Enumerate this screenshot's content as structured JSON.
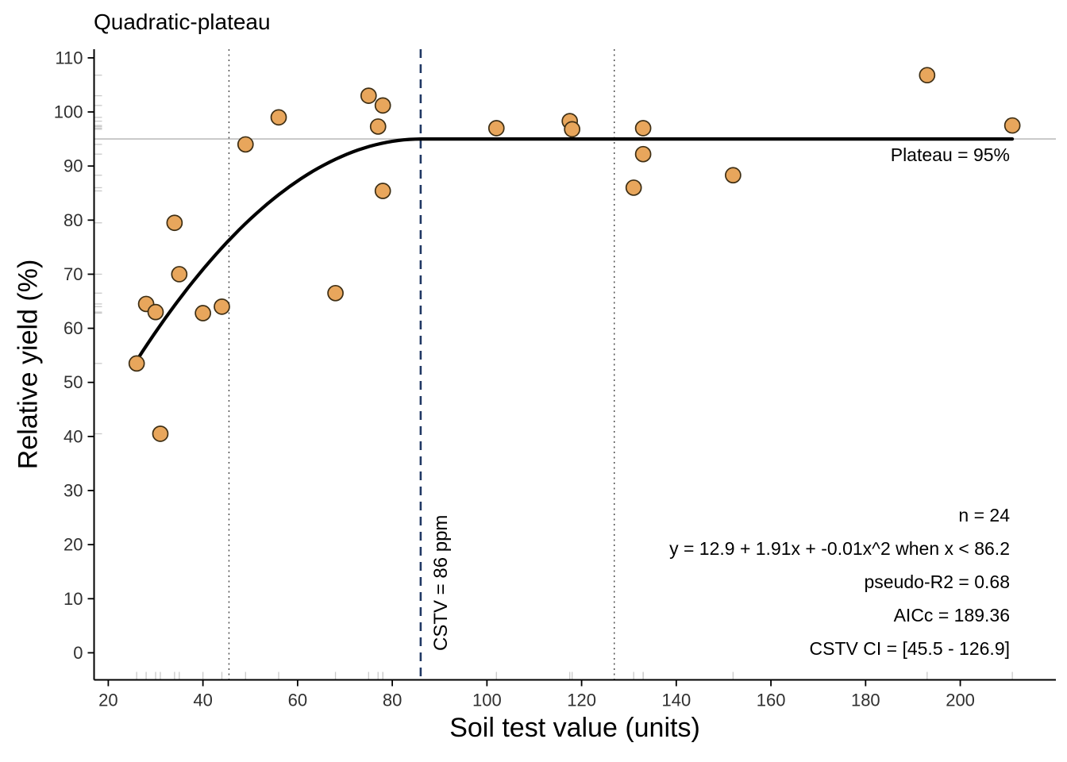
{
  "chart_data": {
    "type": "scatter",
    "title": "Quadratic-plateau",
    "xlabel": "Soil test value (units)",
    "ylabel": "Relative yield (%)",
    "xlim": [
      17,
      220.2
    ],
    "ylim": [
      -5,
      111.6
    ],
    "x_ticks": [
      20,
      40,
      60,
      80,
      100,
      120,
      140,
      160,
      180,
      200
    ],
    "y_ticks": [
      0,
      10,
      20,
      30,
      40,
      50,
      60,
      70,
      80,
      90,
      100,
      110
    ],
    "grid": false,
    "legend": "none",
    "points": [
      {
        "x": 26,
        "y": 53.5
      },
      {
        "x": 28,
        "y": 64.5
      },
      {
        "x": 30,
        "y": 63.0
      },
      {
        "x": 31,
        "y": 40.5
      },
      {
        "x": 34,
        "y": 79.5
      },
      {
        "x": 35,
        "y": 70.0
      },
      {
        "x": 40,
        "y": 62.8
      },
      {
        "x": 44,
        "y": 64.0
      },
      {
        "x": 49,
        "y": 94.0
      },
      {
        "x": 56,
        "y": 99.0
      },
      {
        "x": 68,
        "y": 66.5
      },
      {
        "x": 75,
        "y": 103.0
      },
      {
        "x": 77,
        "y": 97.3
      },
      {
        "x": 78,
        "y": 101.2
      },
      {
        "x": 78,
        "y": 85.4
      },
      {
        "x": 102,
        "y": 97.0
      },
      {
        "x": 117.5,
        "y": 98.3
      },
      {
        "x": 118,
        "y": 96.8
      },
      {
        "x": 131,
        "y": 86.0
      },
      {
        "x": 133,
        "y": 97.0
      },
      {
        "x": 133,
        "y": 92.2
      },
      {
        "x": 152,
        "y": 88.3
      },
      {
        "x": 193,
        "y": 106.8
      },
      {
        "x": 211,
        "y": 97.5
      }
    ],
    "model": {
      "n": 24,
      "equation": "y = 12.9 + 1.91x + -0.01x^2 when x < 86.2",
      "intercept": 12.9,
      "linear": 1.91,
      "quadratic": -0.01,
      "join_x": 86.2,
      "plateau_y": 95,
      "curvature": 0.0113,
      "curve_x_start": 26,
      "curve_x_end": 211,
      "pseudo_r2": 0.68,
      "aicc": 189.36
    },
    "plateau_label": "Plateau = 95%",
    "cstv": {
      "x": 86,
      "label": "CSTV = 86 ppm"
    },
    "ci": {
      "lower": 45.5,
      "upper": 126.9
    },
    "annotations": [
      "n = 24",
      "y = 12.9 + 1.91x + -0.01x^2 when x < 86.2",
      "pseudo-R2 = 0.68",
      "AICc = 189.36",
      "CSTV CI = [45.5 - 126.9]"
    ],
    "colors": {
      "point_fill": "#E8A65C",
      "point_stroke": "#3D2E14",
      "curve": "#000000",
      "plateau_line": "#BDBDBD",
      "cstv_line": "#203864",
      "ci_line": "#474747",
      "rug": "#C9C9C9",
      "axis": "#000000",
      "tick_label": "#303030",
      "text": "#000000"
    }
  }
}
